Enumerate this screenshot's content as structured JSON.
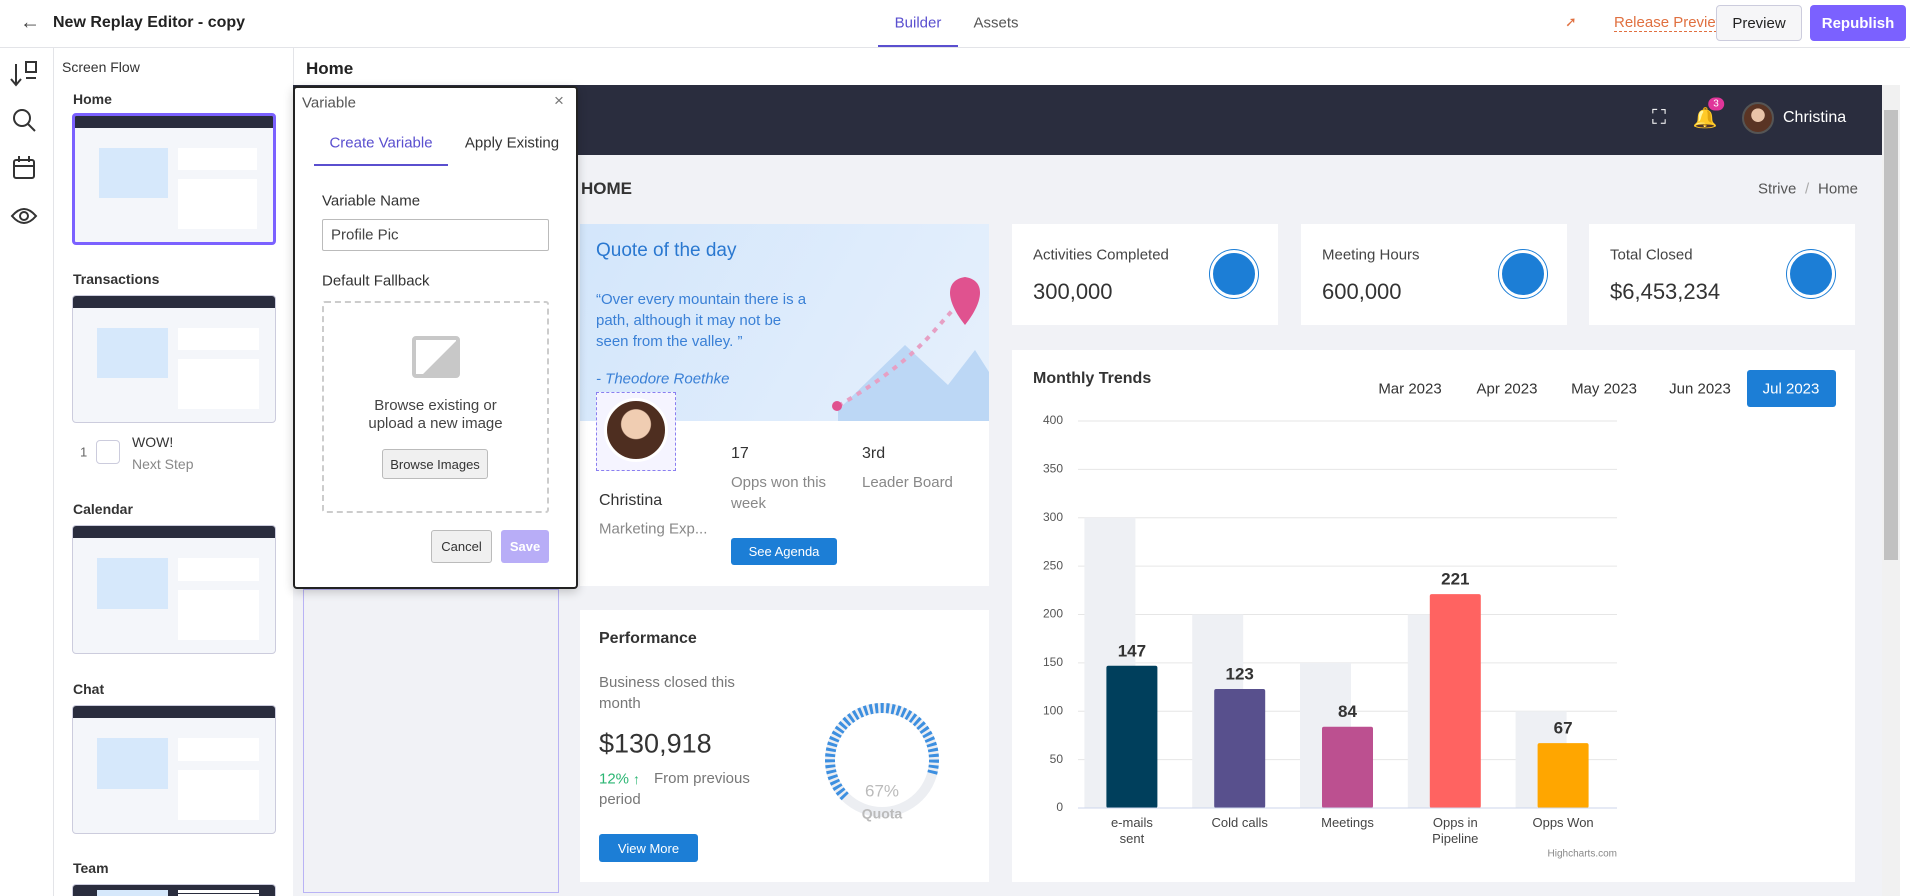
{
  "header": {
    "title": "New Replay Editor - copy",
    "tabs": [
      "Builder",
      "Assets"
    ],
    "active_tab": 0,
    "buttons": [
      "Release Preview",
      "Preview",
      "Republish"
    ]
  },
  "sidebar": {
    "title": "Screen Flow",
    "screens": [
      {
        "name": "Home",
        "selected": true
      },
      {
        "name": "Transactions",
        "step": {
          "number": 1,
          "title": "WOW!",
          "subtitle": "Next Step"
        }
      },
      {
        "name": "Calendar"
      },
      {
        "name": "Chat"
      },
      {
        "name": "Team"
      }
    ]
  },
  "canvas": {
    "title": "Home"
  },
  "modal": {
    "title": "Variable",
    "tabs": [
      "Create Variable",
      "Apply Existing"
    ],
    "active_tab": 0,
    "name_label": "Variable Name",
    "name_value": "Profile Pic",
    "fallback_label": "Default Fallback",
    "upload_text": "Browse existing or upload a new image",
    "browse_button": "Browse Images",
    "cancel": "Cancel",
    "save": "Save"
  },
  "app": {
    "user": "Christina",
    "notifications": 3,
    "page_title": "HOME",
    "breadcrumb": [
      "Strive",
      "Home"
    ],
    "quote": {
      "title": "Quote of the day",
      "text": "“Over every mountain there is a path, although it may not be seen from the valley. ”",
      "author": "- Theodore Roethke"
    },
    "profile": {
      "name": "Christina",
      "role": "Marketing Exp...",
      "stats": [
        {
          "value": "17",
          "label": "Opps won this week"
        },
        {
          "value": "3rd",
          "label": "Leader Board"
        }
      ],
      "button": "See Agenda"
    },
    "stats": [
      {
        "label": "Activities Completed",
        "value": "300,000"
      },
      {
        "label": "Meeting Hours",
        "value": "600,000"
      },
      {
        "label": "Total Closed",
        "value": "$6,453,234"
      }
    ],
    "performance": {
      "title": "Performance",
      "subtitle": "Business closed this month",
      "amount": "$130,918",
      "change": "12%",
      "change_text": "From previous period",
      "button": "View More",
      "gauge": {
        "value": 67,
        "value_label": "67%",
        "label": "Quota"
      }
    },
    "trends": {
      "title": "Monthly Trends",
      "months": [
        "Mar 2023",
        "Apr 2023",
        "May 2023",
        "Jun 2023",
        "Jul 2023"
      ],
      "active_month": 4,
      "chart": {
        "type": "bar",
        "categories": [
          "e-mails sent",
          "Cold calls",
          "Meetings",
          "Opps in Pipeline",
          "Opps Won"
        ],
        "series": [
          {
            "color": "#eef0f4",
            "values": [
              300,
              200,
              150,
              200,
              100
            ]
          },
          {
            "colors": [
              "#003f5c",
              "#58508d",
              "#bc5090",
              "#ff6361",
              "#ffa600"
            ],
            "values": [
              147,
              123,
              84,
              221,
              67
            ]
          }
        ],
        "ylim": [
          0,
          400
        ],
        "yticks": [
          0,
          50,
          100,
          150,
          200,
          250,
          300,
          350,
          400
        ],
        "grid": true,
        "credit": "Highcharts.com"
      }
    }
  }
}
